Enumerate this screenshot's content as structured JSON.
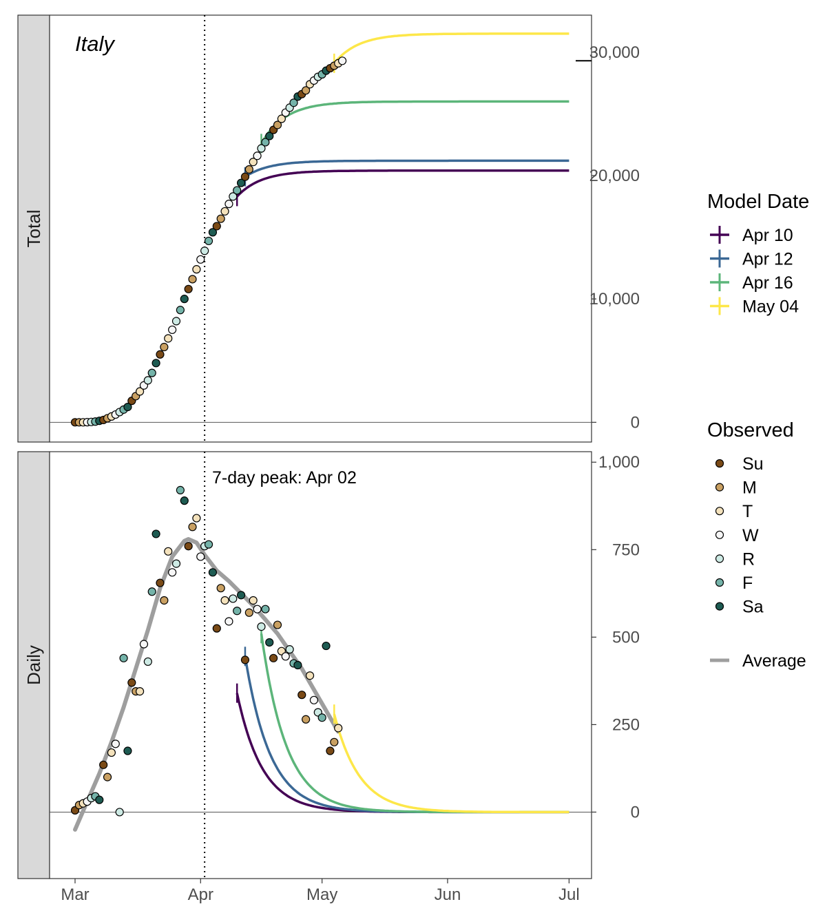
{
  "chart_data": {
    "type": "line",
    "country": "Italy",
    "x_ticks": [
      {
        "label": "Mar",
        "day": 0
      },
      {
        "label": "Apr",
        "day": 31
      },
      {
        "label": "May",
        "day": 61
      },
      {
        "label": "Jun",
        "day": 92
      },
      {
        "label": "Jul",
        "day": 122
      }
    ],
    "panels": [
      {
        "name": "Total",
        "yticks": [
          0,
          10000,
          20000,
          30000
        ],
        "ytick_labels": [
          "0",
          "10,000",
          "20,000",
          "30,000"
        ],
        "ylim": [
          -1600,
          33000
        ],
        "observed_cumulative": [
          [
            0,
            0
          ],
          [
            1,
            0
          ],
          [
            2,
            0
          ],
          [
            3,
            10
          ],
          [
            4,
            30
          ],
          [
            5,
            60
          ],
          [
            6,
            120
          ],
          [
            7,
            190
          ],
          [
            8,
            330
          ],
          [
            9,
            470
          ],
          [
            10,
            630
          ],
          [
            11,
            830
          ],
          [
            12,
            1030
          ],
          [
            13,
            1240
          ],
          [
            14,
            1740
          ],
          [
            15,
            2120
          ],
          [
            16,
            2500
          ],
          [
            17,
            2990
          ],
          [
            18,
            3400
          ],
          [
            19,
            4000
          ],
          [
            20,
            4800
          ],
          [
            21,
            5500
          ],
          [
            22,
            6100
          ],
          [
            23,
            6800
          ],
          [
            24,
            7500
          ],
          [
            25,
            8200
          ],
          [
            26,
            9100
          ],
          [
            27,
            10000
          ],
          [
            28,
            10800
          ],
          [
            29,
            11600
          ],
          [
            30,
            12400
          ],
          [
            31,
            13200
          ],
          [
            32,
            13900
          ],
          [
            33,
            14700
          ],
          [
            34,
            15400
          ],
          [
            35,
            15900
          ],
          [
            36,
            16500
          ],
          [
            37,
            17100
          ],
          [
            38,
            17700
          ],
          [
            39,
            18300
          ],
          [
            40,
            18800
          ],
          [
            41,
            19400
          ],
          [
            42,
            19900
          ],
          [
            43,
            20500
          ],
          [
            44,
            21100
          ],
          [
            45,
            21600
          ],
          [
            46,
            22200
          ],
          [
            47,
            22700
          ],
          [
            48,
            23200
          ],
          [
            49,
            23700
          ],
          [
            50,
            24100
          ],
          [
            51,
            24600
          ],
          [
            52,
            25100
          ],
          [
            53,
            25500
          ],
          [
            54,
            25900
          ],
          [
            55,
            26400
          ],
          [
            56,
            26600
          ],
          [
            57,
            26900
          ],
          [
            58,
            27400
          ],
          [
            59,
            27700
          ],
          [
            60,
            28000
          ],
          [
            61,
            28200
          ],
          [
            62,
            28500
          ],
          [
            63,
            28700
          ],
          [
            64,
            28900
          ],
          [
            65,
            29100
          ],
          [
            66,
            29300
          ]
        ],
        "projections": [
          {
            "name": "Apr 10",
            "color": "#440154",
            "start_day": 40,
            "start_value": 18300,
            "final_value": 20400
          },
          {
            "name": "Apr 12",
            "color": "#3b6895",
            "start_day": 42,
            "start_value": 19900,
            "final_value": 21200
          },
          {
            "name": "Apr 16",
            "color": "#5cb57a",
            "start_day": 46,
            "start_value": 22600,
            "final_value": 26000
          },
          {
            "name": "May 04",
            "color": "#fde749",
            "start_day": 64,
            "start_value": 29100,
            "final_value": 31500
          }
        ],
        "right_marker_value": 29300
      },
      {
        "name": "Daily",
        "yticks": [
          0,
          250,
          500,
          750,
          1000
        ],
        "ytick_labels": [
          "0",
          "250",
          "500",
          "750",
          "1,000"
        ],
        "ylim": [
          -190,
          1030
        ],
        "annotation": "7-day peak: Apr 02",
        "peak_day": 32,
        "observed_daily": [
          [
            0,
            5
          ],
          [
            1,
            20
          ],
          [
            2,
            25
          ],
          [
            3,
            30
          ],
          [
            4,
            40
          ],
          [
            5,
            45
          ],
          [
            6,
            35
          ],
          [
            7,
            135
          ],
          [
            8,
            100
          ],
          [
            9,
            170
          ],
          [
            10,
            195
          ],
          [
            11,
            0
          ],
          [
            12,
            440
          ],
          [
            13,
            175
          ],
          [
            14,
            370
          ],
          [
            15,
            345
          ],
          [
            16,
            345
          ],
          [
            17,
            480
          ],
          [
            18,
            430
          ],
          [
            19,
            630
          ],
          [
            20,
            795
          ],
          [
            21,
            655
          ],
          [
            22,
            605
          ],
          [
            23,
            745
          ],
          [
            24,
            685
          ],
          [
            25,
            710
          ],
          [
            26,
            920
          ],
          [
            27,
            890
          ],
          [
            28,
            760
          ],
          [
            29,
            815
          ],
          [
            30,
            840
          ],
          [
            31,
            730
          ],
          [
            32,
            760
          ],
          [
            33,
            765
          ],
          [
            34,
            685
          ],
          [
            35,
            525
          ],
          [
            36,
            640
          ],
          [
            37,
            605
          ],
          [
            38,
            545
          ],
          [
            39,
            610
          ],
          [
            40,
            575
          ],
          [
            41,
            620
          ],
          [
            42,
            435
          ],
          [
            43,
            570
          ],
          [
            44,
            605
          ],
          [
            45,
            580
          ],
          [
            46,
            530
          ],
          [
            47,
            580
          ],
          [
            48,
            485
          ],
          [
            49,
            440
          ],
          [
            50,
            535
          ],
          [
            51,
            460
          ],
          [
            52,
            445
          ],
          [
            53,
            465
          ],
          [
            54,
            425
          ],
          [
            55,
            420
          ],
          [
            56,
            335
          ],
          [
            57,
            265
          ],
          [
            58,
            390
          ],
          [
            59,
            320
          ],
          [
            60,
            285
          ],
          [
            61,
            270
          ],
          [
            62,
            475
          ],
          [
            63,
            175
          ],
          [
            64,
            200
          ],
          [
            65,
            240
          ]
        ],
        "average": [
          [
            0,
            -50
          ],
          [
            3,
            30
          ],
          [
            6,
            110
          ],
          [
            9,
            200
          ],
          [
            12,
            300
          ],
          [
            15,
            410
          ],
          [
            18,
            520
          ],
          [
            21,
            640
          ],
          [
            24,
            730
          ],
          [
            27,
            775
          ],
          [
            28,
            780
          ],
          [
            30,
            770
          ],
          [
            32,
            735
          ],
          [
            35,
            690
          ],
          [
            38,
            660
          ],
          [
            41,
            625
          ],
          [
            44,
            590
          ],
          [
            47,
            550
          ],
          [
            50,
            510
          ],
          [
            53,
            460
          ],
          [
            56,
            410
          ],
          [
            59,
            350
          ],
          [
            62,
            290
          ],
          [
            65,
            230
          ]
        ],
        "projections": [
          {
            "name": "Apr 10",
            "color": "#440154",
            "start_day": 40,
            "start_value": 340
          },
          {
            "name": "Apr 12",
            "color": "#3b6895",
            "start_day": 42,
            "start_value": 445
          },
          {
            "name": "Apr 16",
            "color": "#5cb57a",
            "start_day": 46,
            "start_value": 510
          },
          {
            "name": "May 04",
            "color": "#fde749",
            "start_day": 64,
            "start_value": 280
          }
        ]
      }
    ],
    "legend_model": {
      "title": "Model Date",
      "items": [
        {
          "label": "Apr 10",
          "color": "#440154"
        },
        {
          "label": "Apr 12",
          "color": "#3b6895"
        },
        {
          "label": "Apr 16",
          "color": "#5cb57a"
        },
        {
          "label": "May 04",
          "color": "#fde749"
        }
      ]
    },
    "legend_observed": {
      "title": "Observed",
      "items": [
        {
          "label": "Su",
          "color": "#7a4a16"
        },
        {
          "label": "M",
          "color": "#c9a062"
        },
        {
          "label": "T",
          "color": "#f4e2bc"
        },
        {
          "label": "W",
          "color": "#f6f6f6"
        },
        {
          "label": "R",
          "color": "#cdeae4"
        },
        {
          "label": "F",
          "color": "#74b3a9"
        },
        {
          "label": "Sa",
          "color": "#1e5b52"
        }
      ],
      "average_label": "Average",
      "average_color": "#9e9e9e"
    },
    "weekday_of_day0": 0
  }
}
